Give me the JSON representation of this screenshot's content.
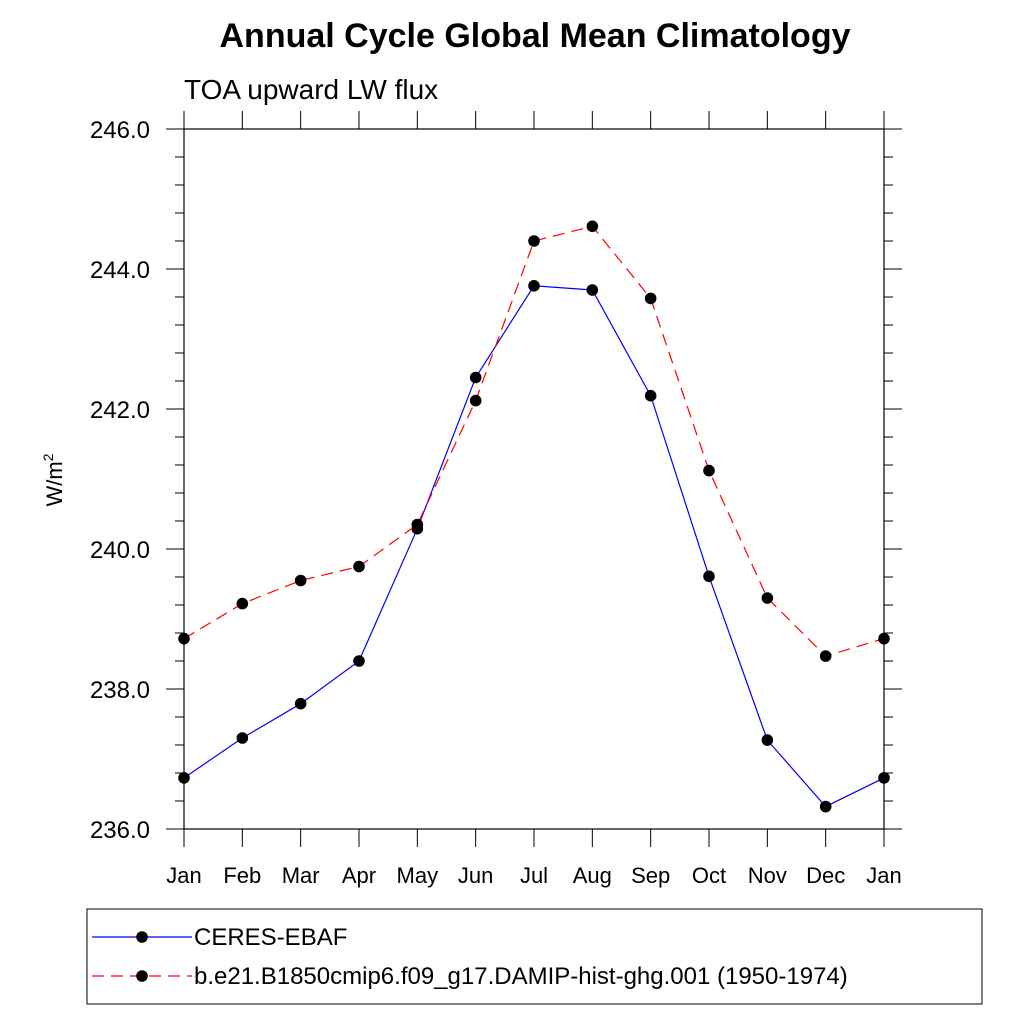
{
  "chart_data": {
    "type": "line",
    "title": "Annual Cycle Global Mean Climatology",
    "subtitle": "TOA upward LW flux",
    "ylabel": {
      "text": "W/m",
      "superscript": "2"
    },
    "xlabel": "",
    "categories": [
      "Jan",
      "Feb",
      "Mar",
      "Apr",
      "May",
      "Jun",
      "Jul",
      "Aug",
      "Sep",
      "Oct",
      "Nov",
      "Dec",
      "Jan"
    ],
    "ylim": [
      236.0,
      246.0
    ],
    "yticks": [
      236.0,
      238.0,
      240.0,
      242.0,
      244.0,
      246.0
    ],
    "ytick_labels": [
      "236.0",
      "238.0",
      "240.0",
      "242.0",
      "244.0",
      "246.0"
    ],
    "y_minor_step": 0.4,
    "grid": false,
    "legend_position": "bottom",
    "series": [
      {
        "name": "CERES-EBAF",
        "color": "#0000ff",
        "dash": "solid",
        "marker": "filled-circle",
        "values": [
          236.73,
          237.3,
          237.79,
          238.4,
          240.29,
          242.45,
          243.76,
          243.7,
          242.19,
          239.61,
          237.27,
          236.32,
          236.73
        ]
      },
      {
        "name": "b.e21.B1850cmip6.f09_g17.DAMIP-hist-ghg.001 (1950-1974)",
        "color": "#ff0000",
        "dash": "dashed",
        "marker": "filled-circle",
        "values": [
          238.72,
          239.22,
          239.55,
          239.75,
          240.35,
          242.12,
          244.4,
          244.61,
          243.58,
          241.12,
          239.3,
          238.47,
          238.72
        ]
      }
    ]
  }
}
